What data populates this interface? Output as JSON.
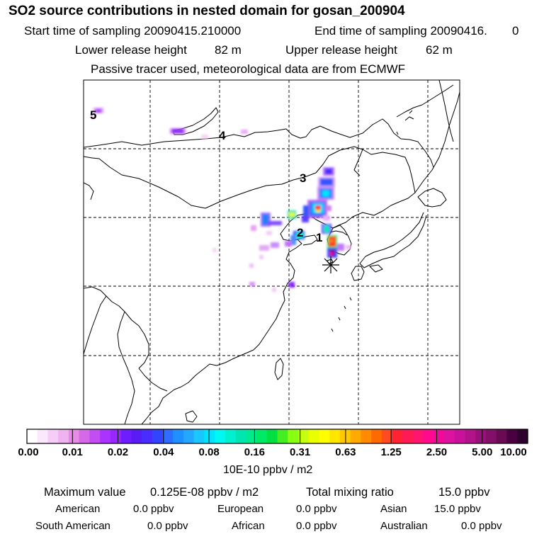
{
  "header": {
    "title": "SO2 source contributions in nested domain for gosan_200904",
    "start_label": "Start time of sampling 20090415.210000",
    "end_label": "End time of sampling 20090416.",
    "end_value": "0",
    "lower_label": "Lower release height",
    "lower_value": "82 m",
    "upper_label": "Upper release height",
    "upper_value": "62 m",
    "info": "Passive tracer used, meteorological data are from ECMWF"
  },
  "map": {
    "region_labels": [
      "5",
      "4",
      "3",
      "2",
      "1"
    ],
    "receptor": "gosan station (asterisk marker)"
  },
  "colorbar": {
    "tick_labels": [
      "0.00",
      "0.01",
      "0.02",
      "0.04",
      "0.08",
      "0.16",
      "0.31",
      "0.63",
      "1.25",
      "2.50",
      "5.00",
      "10.00"
    ],
    "unit": "10E-10 ppbv / m2",
    "colors": [
      "#ffffff",
      "#fce8fc",
      "#f6cdf6",
      "#f0b2f0",
      "#e68ce6",
      "#d569e8",
      "#c24df0",
      "#aa33ff",
      "#9a26ff",
      "#6f1cff",
      "#5a1cf5",
      "#4a2cff",
      "#3344ff",
      "#2f6cff",
      "#1e90ff",
      "#24a8ff",
      "#18c8ff",
      "#00e4ff",
      "#00f8f4",
      "#00f0d0",
      "#00e6b0",
      "#00ea90",
      "#00ea66",
      "#00e040",
      "#44ee22",
      "#88ff11",
      "#c4ff10",
      "#eaff00",
      "#ffff00",
      "#ffe600",
      "#ffc800",
      "#ffaa00",
      "#ff8c00",
      "#ff6a00",
      "#ff4a22",
      "#ff2233",
      "#ff1a55",
      "#ff1470",
      "#ff0a8c",
      "#f00a99",
      "#dc12a0",
      "#c8129c",
      "#b2128a",
      "#9a107a",
      "#821068",
      "#6a0a55",
      "#4a0040",
      "#2e002e"
    ]
  },
  "stats": {
    "max_label": "Maximum value",
    "max_value": "0.125E-08 ppbv / m2",
    "total_label": "Total mixing ratio",
    "total_value": "15.0 ppbv",
    "regions": [
      {
        "name": "American",
        "value": "0.0 ppbv"
      },
      {
        "name": "European",
        "value": "0.0 ppbv"
      },
      {
        "name": "Asian",
        "value": "15.0 ppbv"
      },
      {
        "name": "South American",
        "value": "0.0 ppbv"
      },
      {
        "name": "African",
        "value": "0.0 ppbv"
      },
      {
        "name": "Australian",
        "value": "0.0 ppbv"
      }
    ]
  }
}
